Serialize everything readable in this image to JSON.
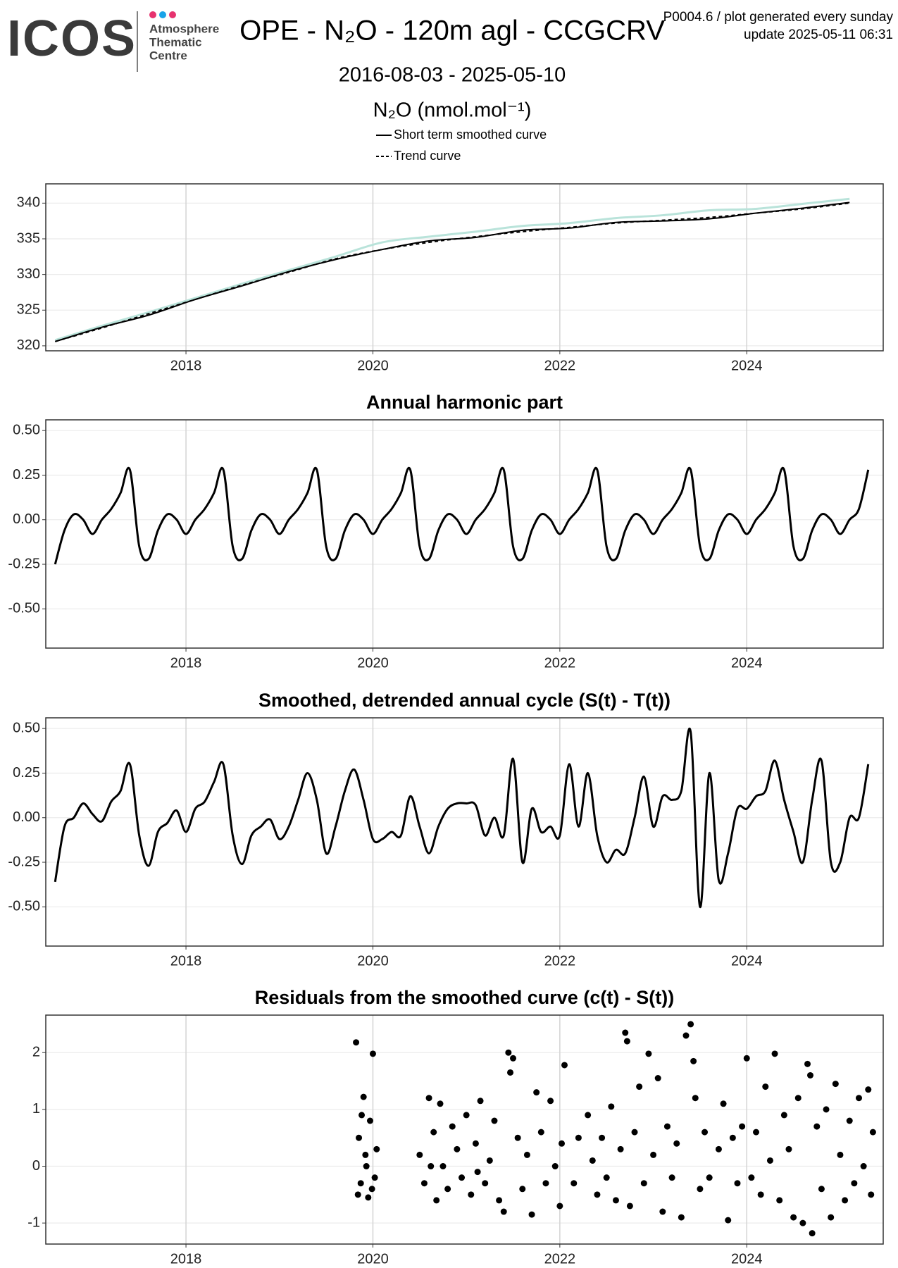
{
  "header": {
    "logo": "ICOS",
    "centre": [
      "Atmosphere",
      "Thematic",
      "Centre"
    ],
    "title": "OPE - N₂O - 120m agl - CCGCRV",
    "subtitle": "2016-08-03 - 2025-05-10",
    "note": [
      "P0004.6 / plot generated every sunday",
      "update  2025-05-11 06:31"
    ]
  },
  "chart_data": [
    {
      "type": "line",
      "y_label": "N₂O (nmol.mol⁻¹)",
      "x": [
        2016.6,
        2017.1,
        2017.6,
        2018.1,
        2018.6,
        2019.1,
        2019.6,
        2020.1,
        2020.6,
        2021.1,
        2021.6,
        2022.1,
        2022.6,
        2023.1,
        2023.6,
        2024.1,
        2024.6,
        2025.1
      ],
      "series": [
        {
          "color": "#b9e3da",
          "dash": "solid",
          "values": [
            320.8,
            322.8,
            324.7,
            326.7,
            328.7,
            330.6,
            332.5,
            334.5,
            335.3,
            336.0,
            336.8,
            337.2,
            337.9,
            338.3,
            339.0,
            339.2,
            339.9,
            340.6
          ]
        },
        {
          "name": "Short term smoothed curve",
          "color": "#000000",
          "dash": "solid",
          "values": [
            320.6,
            322.6,
            324.3,
            326.5,
            328.4,
            330.4,
            332.1,
            333.5,
            334.7,
            335.2,
            336.2,
            336.5,
            337.3,
            337.5,
            337.8,
            338.6,
            339.3,
            340.1
          ]
        },
        {
          "name": "Trend curve",
          "color": "#000000",
          "dash": "dashed",
          "values": [
            320.6,
            322.5,
            324.5,
            326.5,
            328.5,
            330.3,
            332.2,
            333.5,
            334.5,
            335.3,
            336.0,
            336.6,
            337.2,
            337.6,
            338.0,
            338.6,
            339.2,
            340.0
          ]
        }
      ],
      "xlim": [
        2016.5,
        2025.46
      ],
      "xticks": [
        2018,
        2020,
        2022,
        2024
      ],
      "ylim": [
        319.3,
        342.7
      ],
      "yticks": [
        320,
        325,
        330,
        335,
        340
      ],
      "grid": true
    },
    {
      "type": "line",
      "title": "Annual harmonic part",
      "x": [
        2016.6,
        2016.7,
        2016.8,
        2016.9,
        2017.0,
        2017.1,
        2017.2,
        2017.3,
        2017.4,
        2017.5,
        2017.6,
        2017.7,
        2017.8,
        2017.9,
        2018.0,
        2018.1,
        2018.2,
        2018.3,
        2018.4,
        2018.5,
        2018.6,
        2018.7,
        2018.8,
        2018.9,
        2019.0,
        2019.1,
        2019.2,
        2019.3,
        2019.4,
        2019.5,
        2019.6,
        2019.7,
        2019.8,
        2019.9,
        2020.0,
        2020.1,
        2020.2,
        2020.3,
        2020.4,
        2020.5,
        2020.6,
        2020.7,
        2020.8,
        2020.9,
        2021.0,
        2021.1,
        2021.2,
        2021.3,
        2021.4,
        2021.5,
        2021.6,
        2021.7,
        2021.8,
        2021.9,
        2022.0,
        2022.1,
        2022.2,
        2022.3,
        2022.4,
        2022.5,
        2022.6,
        2022.7,
        2022.8,
        2022.9,
        2023.0,
        2023.1,
        2023.2,
        2023.3,
        2023.4,
        2023.5,
        2023.6,
        2023.7,
        2023.8,
        2023.9,
        2024.0,
        2024.1,
        2024.2,
        2024.3,
        2024.4,
        2024.5,
        2024.6,
        2024.7,
        2024.8,
        2024.9,
        2025.0,
        2025.1,
        2025.2,
        2025.3
      ],
      "series": [
        {
          "color": "#000000",
          "values": [
            -0.25,
            -0.06,
            0.03,
            0.0,
            -0.08,
            0.0,
            0.06,
            0.15,
            0.28,
            -0.15,
            -0.22,
            -0.06,
            0.03,
            0.0,
            -0.08,
            0.0,
            0.06,
            0.15,
            0.28,
            -0.15,
            -0.22,
            -0.06,
            0.03,
            0.0,
            -0.08,
            0.0,
            0.06,
            0.15,
            0.28,
            -0.15,
            -0.22,
            -0.06,
            0.03,
            0.0,
            -0.08,
            0.0,
            0.06,
            0.15,
            0.28,
            -0.15,
            -0.22,
            -0.06,
            0.03,
            0.0,
            -0.08,
            0.0,
            0.06,
            0.15,
            0.28,
            -0.15,
            -0.22,
            -0.06,
            0.03,
            0.0,
            -0.08,
            0.0,
            0.06,
            0.15,
            0.28,
            -0.15,
            -0.22,
            -0.06,
            0.03,
            0.0,
            -0.08,
            0.0,
            0.06,
            0.15,
            0.28,
            -0.15,
            -0.22,
            -0.06,
            0.03,
            0.0,
            -0.08,
            0.0,
            0.06,
            0.15,
            0.28,
            -0.15,
            -0.22,
            -0.06,
            0.03,
            0.0,
            -0.08,
            0.0,
            0.06,
            0.28
          ]
        }
      ],
      "xlim": [
        2016.5,
        2025.46
      ],
      "xticks": [
        2018,
        2020,
        2022,
        2024
      ],
      "ylim": [
        -0.72,
        0.56
      ],
      "yticks": [
        {
          "value": 0.5,
          "label": "0.50"
        },
        {
          "value": 0.25,
          "label": "0.25"
        },
        {
          "value": 0,
          "label": "0.00"
        },
        {
          "value": -0.25,
          "label": "-0.25"
        },
        {
          "value": -0.5,
          "label": "-0.50"
        }
      ],
      "grid": true
    },
    {
      "type": "line",
      "title": "Smoothed, detrended annual cycle (S(t) - T(t))",
      "x": [
        2016.6,
        2016.7,
        2016.8,
        2016.9,
        2017.0,
        2017.1,
        2017.2,
        2017.3,
        2017.4,
        2017.5,
        2017.6,
        2017.7,
        2017.8,
        2017.9,
        2018.0,
        2018.1,
        2018.2,
        2018.3,
        2018.4,
        2018.5,
        2018.6,
        2018.7,
        2018.8,
        2018.9,
        2019.0,
        2019.1,
        2019.2,
        2019.3,
        2019.4,
        2019.5,
        2019.6,
        2019.7,
        2019.8,
        2019.9,
        2020.0,
        2020.1,
        2020.2,
        2020.3,
        2020.4,
        2020.5,
        2020.6,
        2020.7,
        2020.8,
        2020.9,
        2021.0,
        2021.1,
        2021.2,
        2021.3,
        2021.4,
        2021.5,
        2021.6,
        2021.7,
        2021.8,
        2021.9,
        2022.0,
        2022.1,
        2022.2,
        2022.3,
        2022.4,
        2022.5,
        2022.6,
        2022.7,
        2022.8,
        2022.9,
        2023.0,
        2023.1,
        2023.2,
        2023.3,
        2023.4,
        2023.5,
        2023.6,
        2023.7,
        2023.8,
        2023.9,
        2024.0,
        2024.1,
        2024.2,
        2024.3,
        2024.4,
        2024.5,
        2024.6,
        2024.7,
        2024.8,
        2024.9,
        2025.0,
        2025.1,
        2025.2,
        2025.3
      ],
      "series": [
        {
          "color": "#000000",
          "values": [
            -0.36,
            -0.05,
            0.0,
            0.08,
            0.02,
            -0.02,
            0.09,
            0.15,
            0.3,
            -0.1,
            -0.27,
            -0.08,
            -0.03,
            0.04,
            -0.08,
            0.05,
            0.09,
            0.2,
            0.3,
            -0.1,
            -0.26,
            -0.1,
            -0.05,
            -0.01,
            -0.12,
            -0.05,
            0.1,
            0.25,
            0.1,
            -0.2,
            -0.05,
            0.15,
            0.27,
            0.1,
            -0.12,
            -0.12,
            -0.08,
            -0.1,
            0.12,
            -0.05,
            -0.2,
            -0.05,
            0.05,
            0.08,
            0.08,
            0.07,
            -0.1,
            0.0,
            -0.1,
            0.33,
            -0.25,
            0.05,
            -0.08,
            -0.05,
            -0.1,
            0.3,
            -0.05,
            0.25,
            -0.1,
            -0.25,
            -0.18,
            -0.2,
            0.0,
            0.23,
            -0.05,
            0.12,
            0.1,
            0.15,
            0.48,
            -0.5,
            0.25,
            -0.35,
            -0.2,
            0.05,
            0.05,
            0.12,
            0.15,
            0.32,
            0.1,
            -0.08,
            -0.25,
            0.1,
            0.32,
            -0.25,
            -0.25,
            0.0,
            0.0,
            0.3
          ]
        }
      ],
      "xlim": [
        2016.5,
        2025.46
      ],
      "xticks": [
        2018,
        2020,
        2022,
        2024
      ],
      "ylim": [
        -0.72,
        0.56
      ],
      "yticks": [
        {
          "value": 0.5,
          "label": "0.50"
        },
        {
          "value": 0.25,
          "label": "0.25"
        },
        {
          "value": 0,
          "label": "0.00"
        },
        {
          "value": -0.25,
          "label": "-0.25"
        },
        {
          "value": -0.5,
          "label": "-0.50"
        }
      ],
      "grid": true
    },
    {
      "type": "scatter",
      "title": "Residuals from the smoothed curve (c(t) - S(t))",
      "x": [
        2019.82,
        2019.85,
        2019.87,
        2019.9,
        2019.92,
        2019.95,
        2019.97,
        2020.0,
        2020.02,
        2019.88,
        2019.84,
        2019.93,
        2020.04,
        2019.99,
        2020.5,
        2020.55,
        2020.6,
        2020.65,
        2020.68,
        2020.72,
        2020.75,
        2020.8,
        2020.85,
        2020.9,
        2020.95,
        2021.0,
        2021.05,
        2021.1,
        2021.15,
        2021.2,
        2021.25,
        2021.3,
        2021.35,
        2021.4,
        2021.45,
        2021.47,
        2021.5,
        2021.55,
        2021.6,
        2021.65,
        2021.7,
        2021.75,
        2021.8,
        2021.85,
        2021.9,
        2021.95,
        2022.0,
        2022.05,
        2022.02,
        2022.3,
        2022.35,
        2022.4,
        2022.45,
        2022.5,
        2022.55,
        2022.6,
        2022.65,
        2022.7,
        2022.72,
        2022.75,
        2022.8,
        2022.85,
        2022.9,
        2022.95,
        2023.0,
        2023.05,
        2023.1,
        2023.15,
        2023.2,
        2023.25,
        2023.3,
        2023.35,
        2023.4,
        2023.43,
        2023.45,
        2023.5,
        2023.55,
        2023.6,
        2023.7,
        2023.75,
        2023.8,
        2023.85,
        2023.9,
        2023.95,
        2024.0,
        2024.05,
        2024.1,
        2024.15,
        2024.2,
        2024.25,
        2024.3,
        2024.35,
        2024.4,
        2024.45,
        2024.5,
        2024.55,
        2024.6,
        2024.65,
        2024.68,
        2024.7,
        2024.75,
        2024.8,
        2024.85,
        2024.9,
        2024.95,
        2025.0,
        2025.05,
        2025.1,
        2025.15,
        2025.2,
        2025.25,
        2025.3,
        2025.33,
        2025.35,
        2022.15,
        2022.2,
        2021.12,
        2020.62
      ],
      "series": [
        {
          "color": "#000000",
          "values": [
            2.18,
            0.5,
            -0.3,
            1.22,
            0.2,
            -0.55,
            0.8,
            1.98,
            -0.2,
            0.9,
            -0.5,
            0.0,
            0.3,
            -0.4,
            0.2,
            -0.3,
            1.2,
            0.6,
            -0.6,
            1.1,
            0.0,
            -0.4,
            0.7,
            0.3,
            -0.2,
            0.9,
            -0.5,
            0.4,
            1.15,
            -0.3,
            0.1,
            0.8,
            -0.6,
            -0.8,
            2.0,
            1.65,
            1.9,
            0.5,
            -0.4,
            0.2,
            -0.85,
            1.3,
            0.6,
            -0.3,
            1.15,
            0.0,
            -0.7,
            1.78,
            0.4,
            0.9,
            0.1,
            -0.5,
            0.5,
            -0.2,
            1.05,
            -0.6,
            0.3,
            2.35,
            2.2,
            -0.7,
            0.6,
            1.4,
            -0.3,
            1.98,
            0.2,
            1.55,
            -0.8,
            0.7,
            -0.2,
            0.4,
            -0.9,
            2.3,
            2.5,
            1.85,
            1.2,
            -0.4,
            0.6,
            -0.2,
            0.3,
            1.1,
            -0.95,
            0.5,
            -0.3,
            0.7,
            1.9,
            -0.2,
            0.6,
            -0.5,
            1.4,
            0.1,
            1.98,
            -0.6,
            0.9,
            0.3,
            -0.9,
            1.2,
            -1.0,
            1.8,
            1.6,
            -1.18,
            0.7,
            -0.4,
            1.0,
            -0.9,
            1.45,
            0.2,
            -0.6,
            0.8,
            -0.3,
            1.2,
            0.0,
            1.35,
            -0.5,
            0.6,
            -0.3,
            0.5,
            -0.1,
            0.0
          ]
        }
      ],
      "xlim": [
        2016.5,
        2025.46
      ],
      "xticks": [
        2018,
        2020,
        2022,
        2024
      ],
      "ylim": [
        -1.37,
        2.66
      ],
      "yticks": [
        2,
        1,
        0,
        -1
      ],
      "grid": true
    }
  ]
}
